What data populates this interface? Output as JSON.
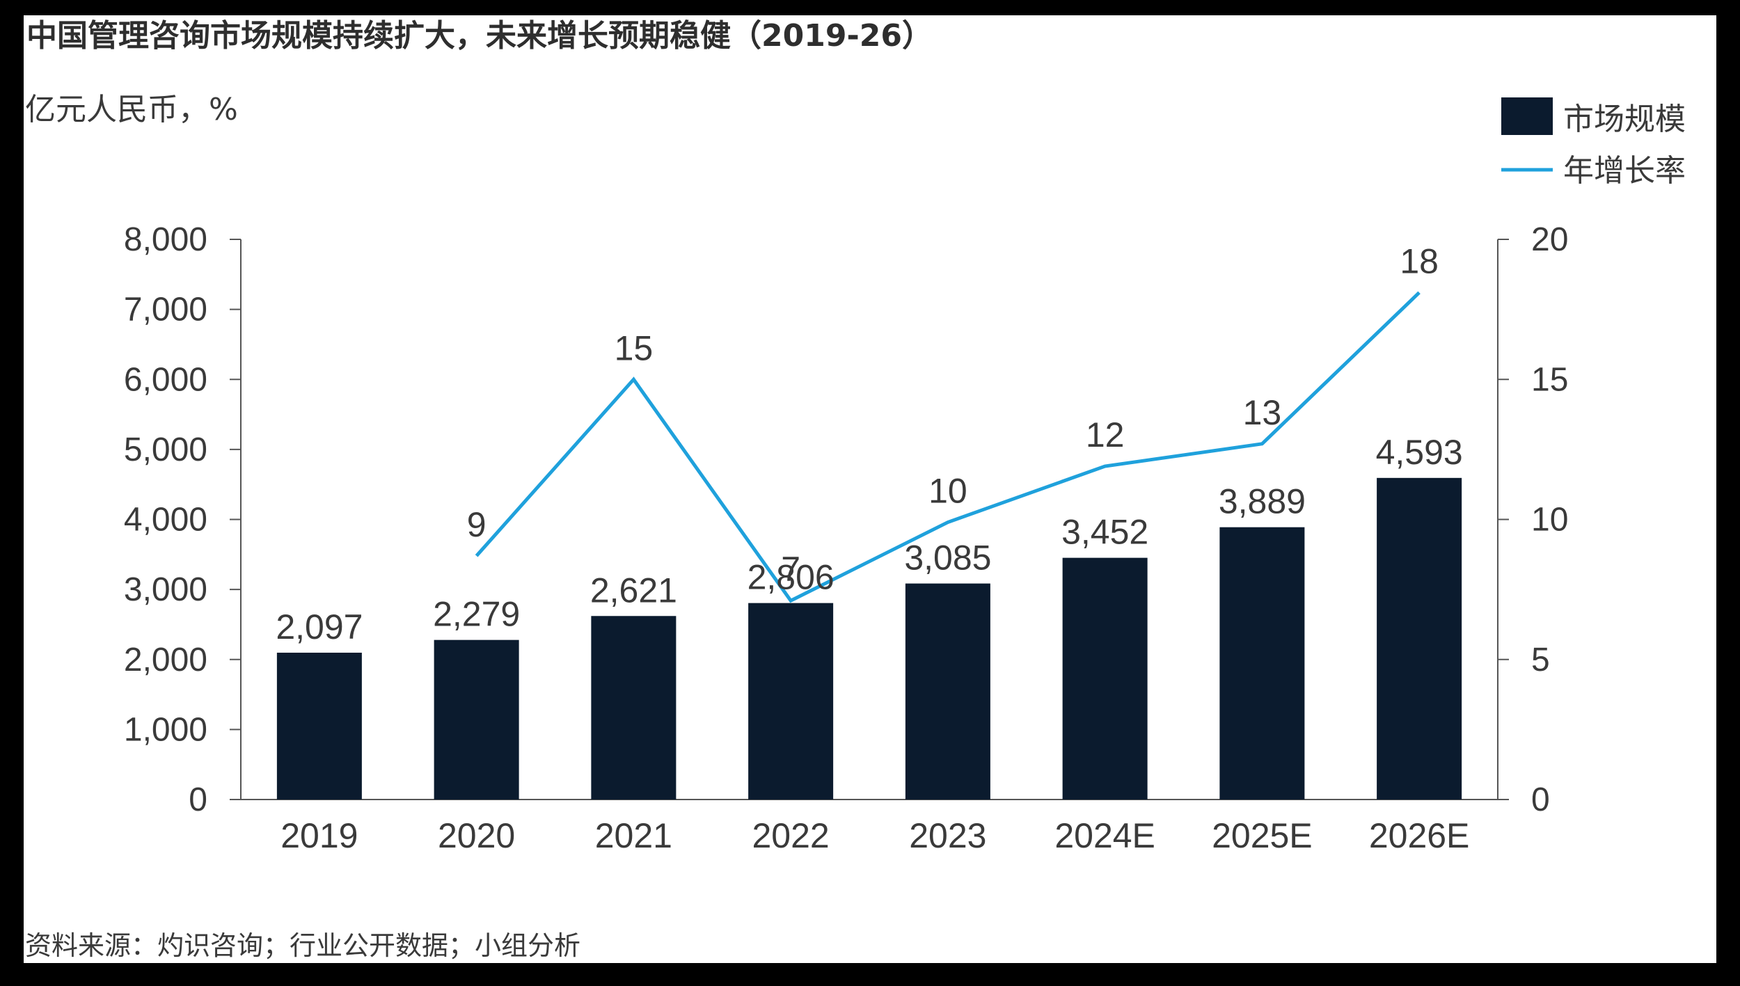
{
  "title": "中国管理咨询市场规模持续扩大，未来增长预期稳健（2019-26）",
  "units": "亿元人民币，%",
  "source": "资料来源：灼识咨询；行业公开数据；小组分析",
  "colors": {
    "bar": "#0b1b2e",
    "line": "#1fa1dc",
    "axis": "#555555",
    "text": "#3a3a3a"
  },
  "chart_data": {
    "type": "bar",
    "categories": [
      "2019",
      "2020",
      "2021",
      "2022",
      "2023",
      "2024E",
      "2025E",
      "2026E"
    ],
    "series": [
      {
        "name": "市场规模",
        "type": "bar",
        "axis": "left",
        "values": [
          2097,
          2279,
          2621,
          2806,
          3085,
          3452,
          3889,
          4593
        ],
        "labels": [
          "2,097",
          "2,279",
          "2,621",
          "2,806",
          "3,085",
          "3,452",
          "3,889",
          "4,593"
        ]
      },
      {
        "name": "年增长率",
        "type": "line",
        "axis": "right",
        "values": [
          null,
          8.7,
          15.0,
          7.1,
          9.9,
          11.9,
          12.7,
          18.1
        ],
        "labels": [
          "",
          "9",
          "15",
          "7",
          "10",
          "12",
          "13",
          "18"
        ]
      }
    ],
    "y_left": {
      "min": 0,
      "max": 8000,
      "ticks": [
        "0",
        "1,000",
        "2,000",
        "3,000",
        "4,000",
        "5,000",
        "6,000",
        "7,000",
        "8,000"
      ]
    },
    "y_right": {
      "min": 0,
      "max": 20,
      "ticks": [
        "0",
        "5",
        "10",
        "15",
        "20"
      ]
    },
    "legend": {
      "position": "top-right",
      "items": [
        "市场规模",
        "年增长率"
      ]
    },
    "grid": false
  }
}
